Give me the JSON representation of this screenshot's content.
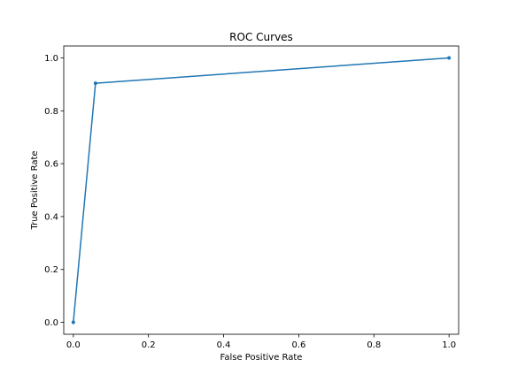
{
  "chart_data": {
    "type": "line",
    "title": "ROC Curves",
    "xlabel": "False Positive Rate",
    "ylabel": "True Positive Rate",
    "xlim": [
      -0.0255,
      1.0255
    ],
    "ylim": [
      -0.045,
      1.045
    ],
    "grid": false,
    "x_ticks": [
      0.0,
      0.2,
      0.4,
      0.6,
      0.8,
      1.0
    ],
    "x_tick_labels": [
      "0.0",
      "0.2",
      "0.4",
      "0.6",
      "0.8",
      "1.0"
    ],
    "y_ticks": [
      0.0,
      0.2,
      0.4,
      0.6,
      0.8,
      1.0
    ],
    "y_tick_labels": [
      "0.0",
      "0.2",
      "0.4",
      "0.6",
      "0.8",
      "1.0"
    ],
    "series": [
      {
        "color": "#1f77b4",
        "marker": "point",
        "x": [
          0.0,
          0.059,
          1.0
        ],
        "y": [
          0.0,
          0.904,
          1.0
        ]
      }
    ]
  }
}
